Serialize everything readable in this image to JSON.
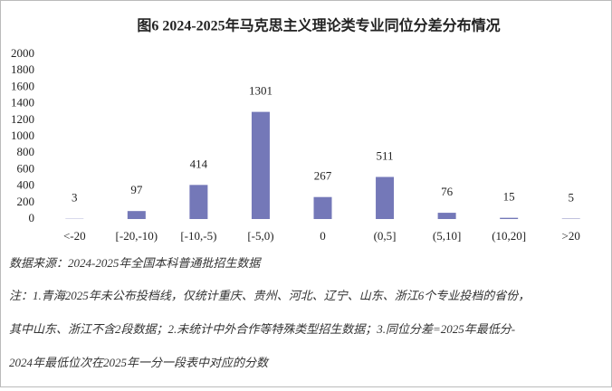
{
  "chart_data": {
    "type": "bar",
    "title": "图6  2024-2025年马克思主义理论类专业同位分差分布情况",
    "categories": [
      "<-20",
      "[-20,-10)",
      "[-10,-5)",
      "[-5,0)",
      "0",
      "(0,5]",
      "(5,10]",
      "(10,20]",
      ">20"
    ],
    "values": [
      3,
      97,
      414,
      1301,
      267,
      511,
      76,
      15,
      5
    ],
    "color": "#7478b8",
    "ylim": [
      0,
      2000
    ],
    "yticks": [
      0,
      200,
      400,
      600,
      800,
      1000,
      1200,
      1400,
      1600,
      1800,
      2000
    ],
    "grid": false,
    "source": "数据来源：2024-2025年全国本科普通批招生数据",
    "notes": [
      "注：1.青海2025年未公布投档线，仅统计重庆、贵州、河北、辽宁、山东、浙江6个专业投档的省份，",
      "其中山东、浙江不含2段数据；2.未统计中外合作等特殊类型招生数据；3.同位分差=2025年最低分-",
      "2024年最低位次在2025年一分一段表中对应的分数"
    ]
  }
}
